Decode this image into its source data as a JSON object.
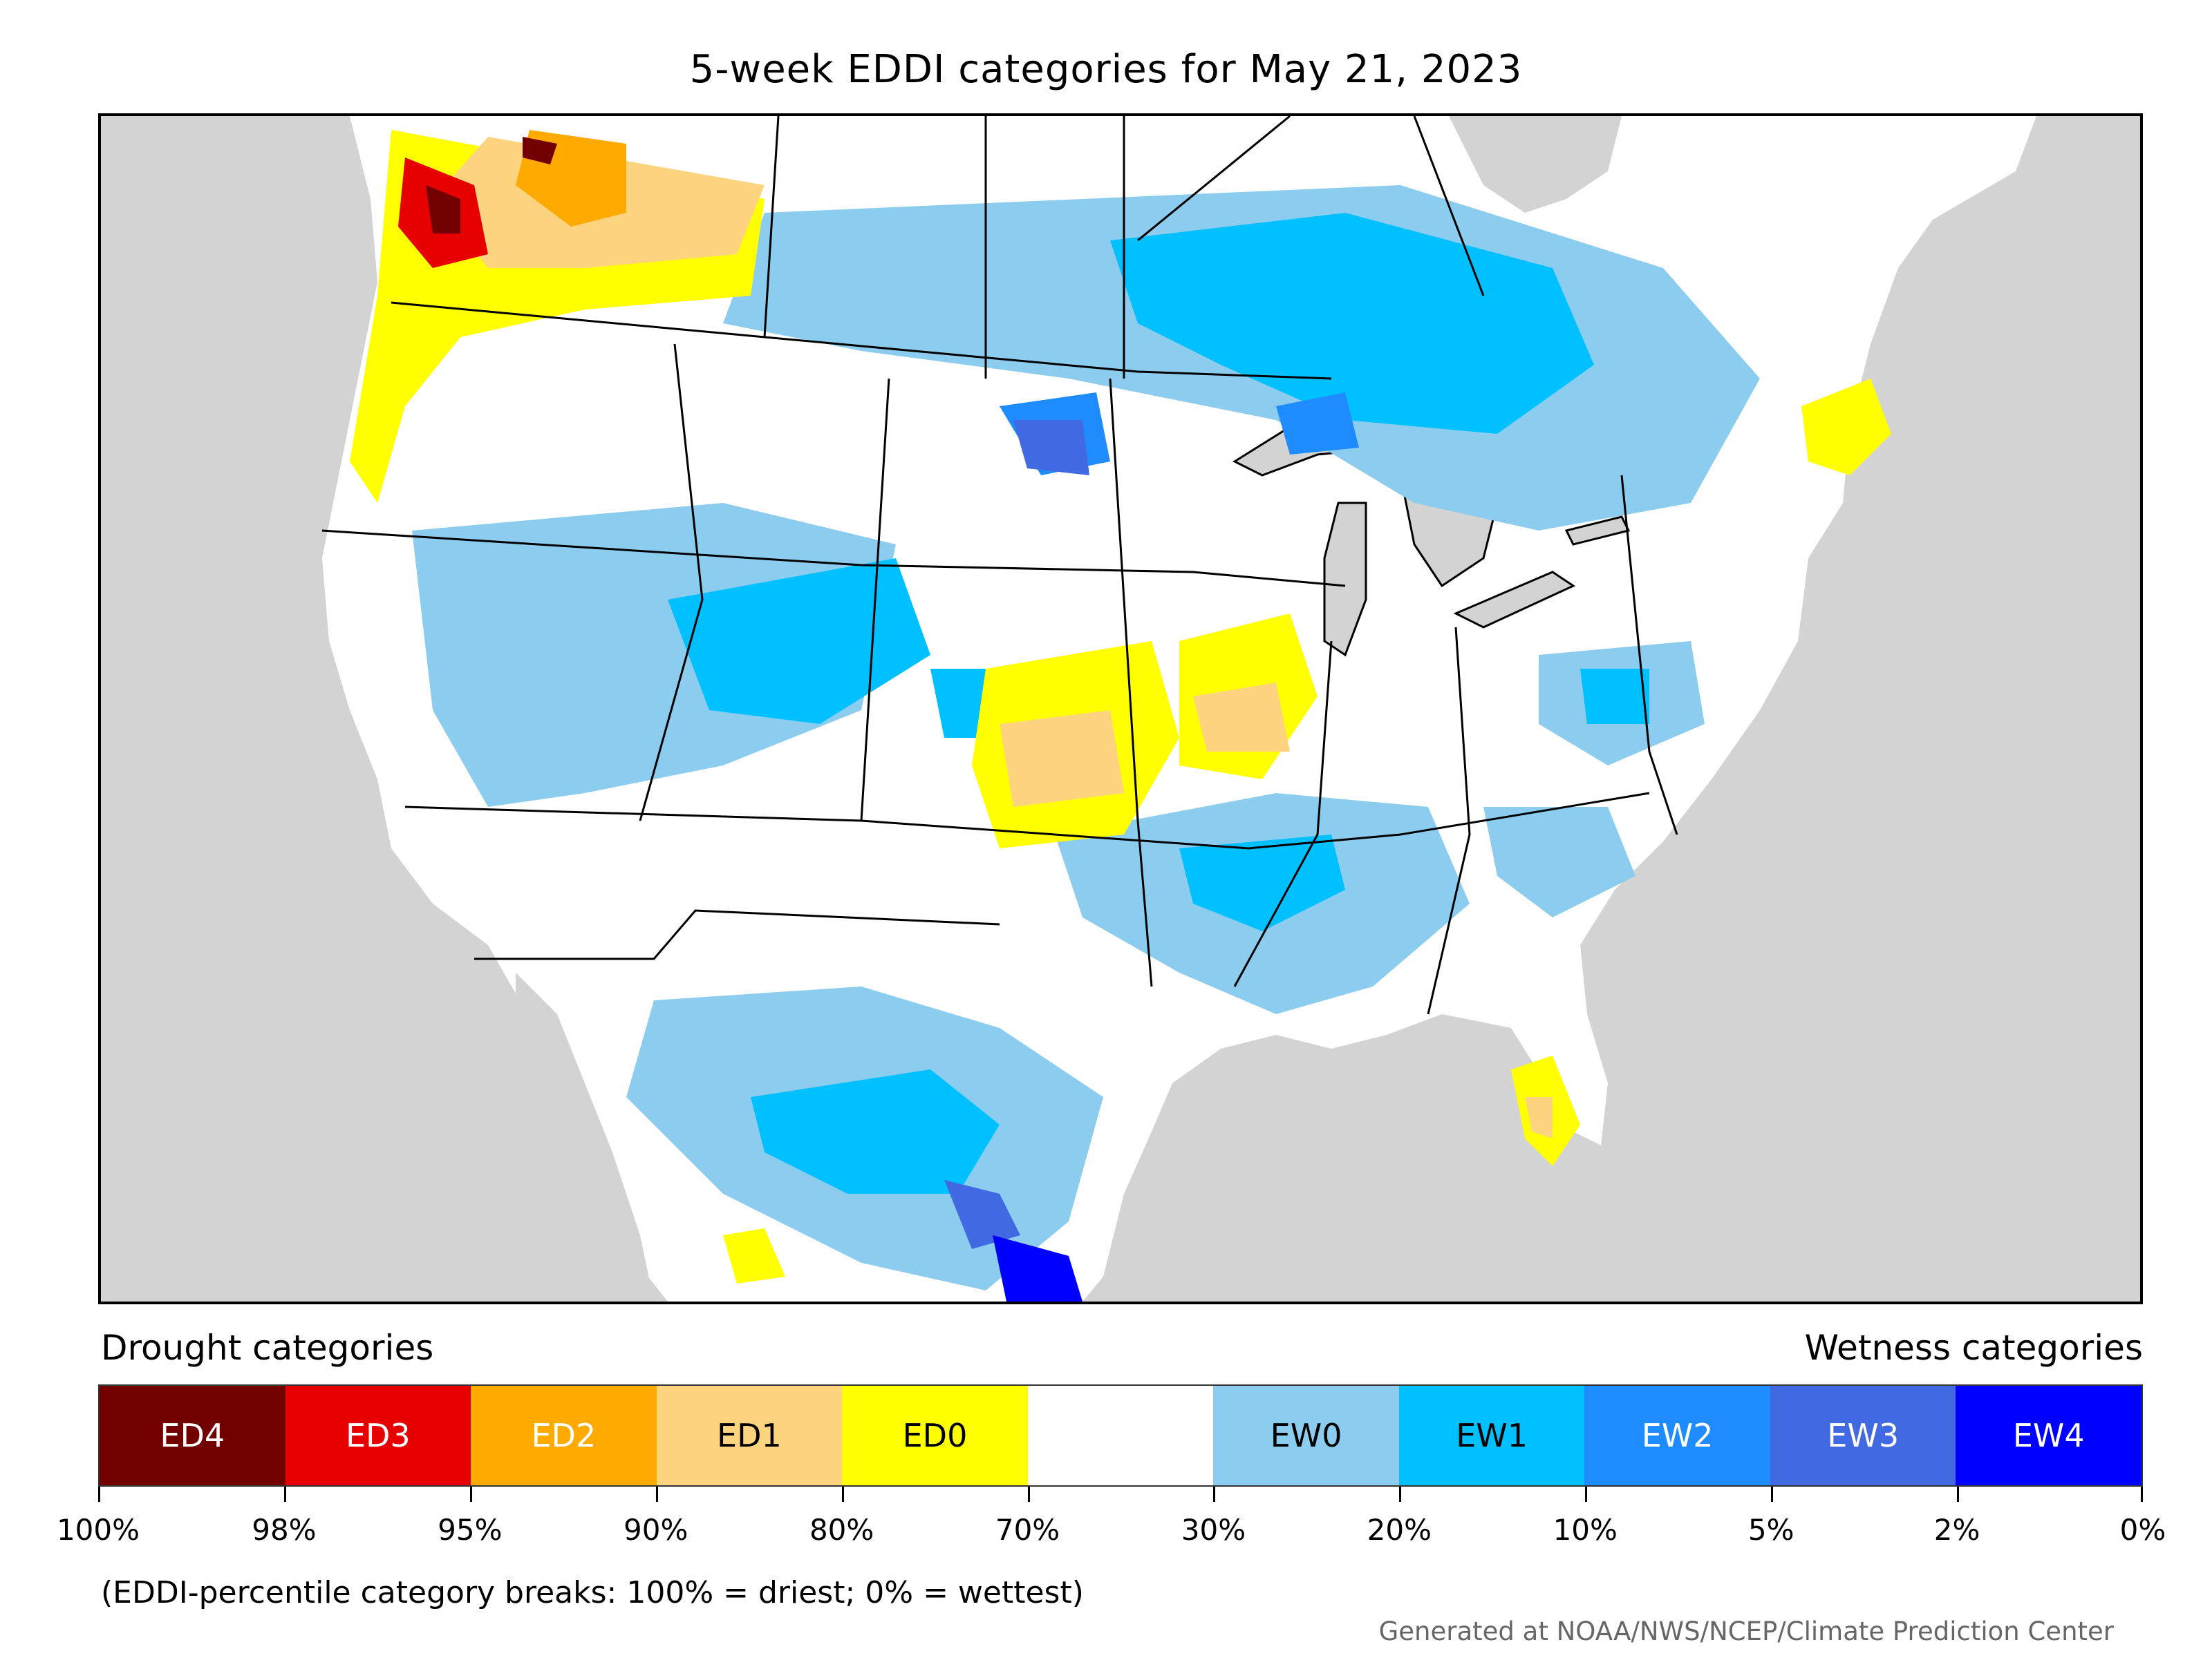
{
  "title": "5-week EDDI categories for May 21, 2023",
  "legend": {
    "drought_heading": "Drought categories",
    "wetness_heading": "Wetness categories",
    "categories": [
      {
        "label": "ED4",
        "color": "#730000",
        "text_color": "#ffffff"
      },
      {
        "label": "ED3",
        "color": "#e60000",
        "text_color": "#ffffff"
      },
      {
        "label": "ED2",
        "color": "#ffaa00",
        "text_color": "#ffffff"
      },
      {
        "label": "ED1",
        "color": "#fcd37f",
        "text_color": "#000000"
      },
      {
        "label": "ED0",
        "color": "#ffff00",
        "text_color": "#000000"
      },
      {
        "label": "",
        "color": "#ffffff",
        "text_color": "#000000"
      },
      {
        "label": "EW0",
        "color": "#8ccdef",
        "text_color": "#000000"
      },
      {
        "label": "EW1",
        "color": "#00c0ff",
        "text_color": "#000000"
      },
      {
        "label": "EW2",
        "color": "#1e8cff",
        "text_color": "#ffffff"
      },
      {
        "label": "EW3",
        "color": "#4169e1",
        "text_color": "#ffffff"
      },
      {
        "label": "EW4",
        "color": "#0000ff",
        "text_color": "#ffffff"
      }
    ],
    "breaks": [
      "100%",
      "98%",
      "95%",
      "90%",
      "80%",
      "70%",
      "30%",
      "20%",
      "10%",
      "5%",
      "2%",
      "0%"
    ]
  },
  "note": "(EDDI-percentile category breaks: 100% = driest; 0% = wettest)",
  "credit": "Generated at NOAA/NWS/NCEP/Climate Prediction Center",
  "colors": {
    "ocean": "#d3d3d3",
    "land": "#ffffff",
    "boundary": "#000000"
  }
}
